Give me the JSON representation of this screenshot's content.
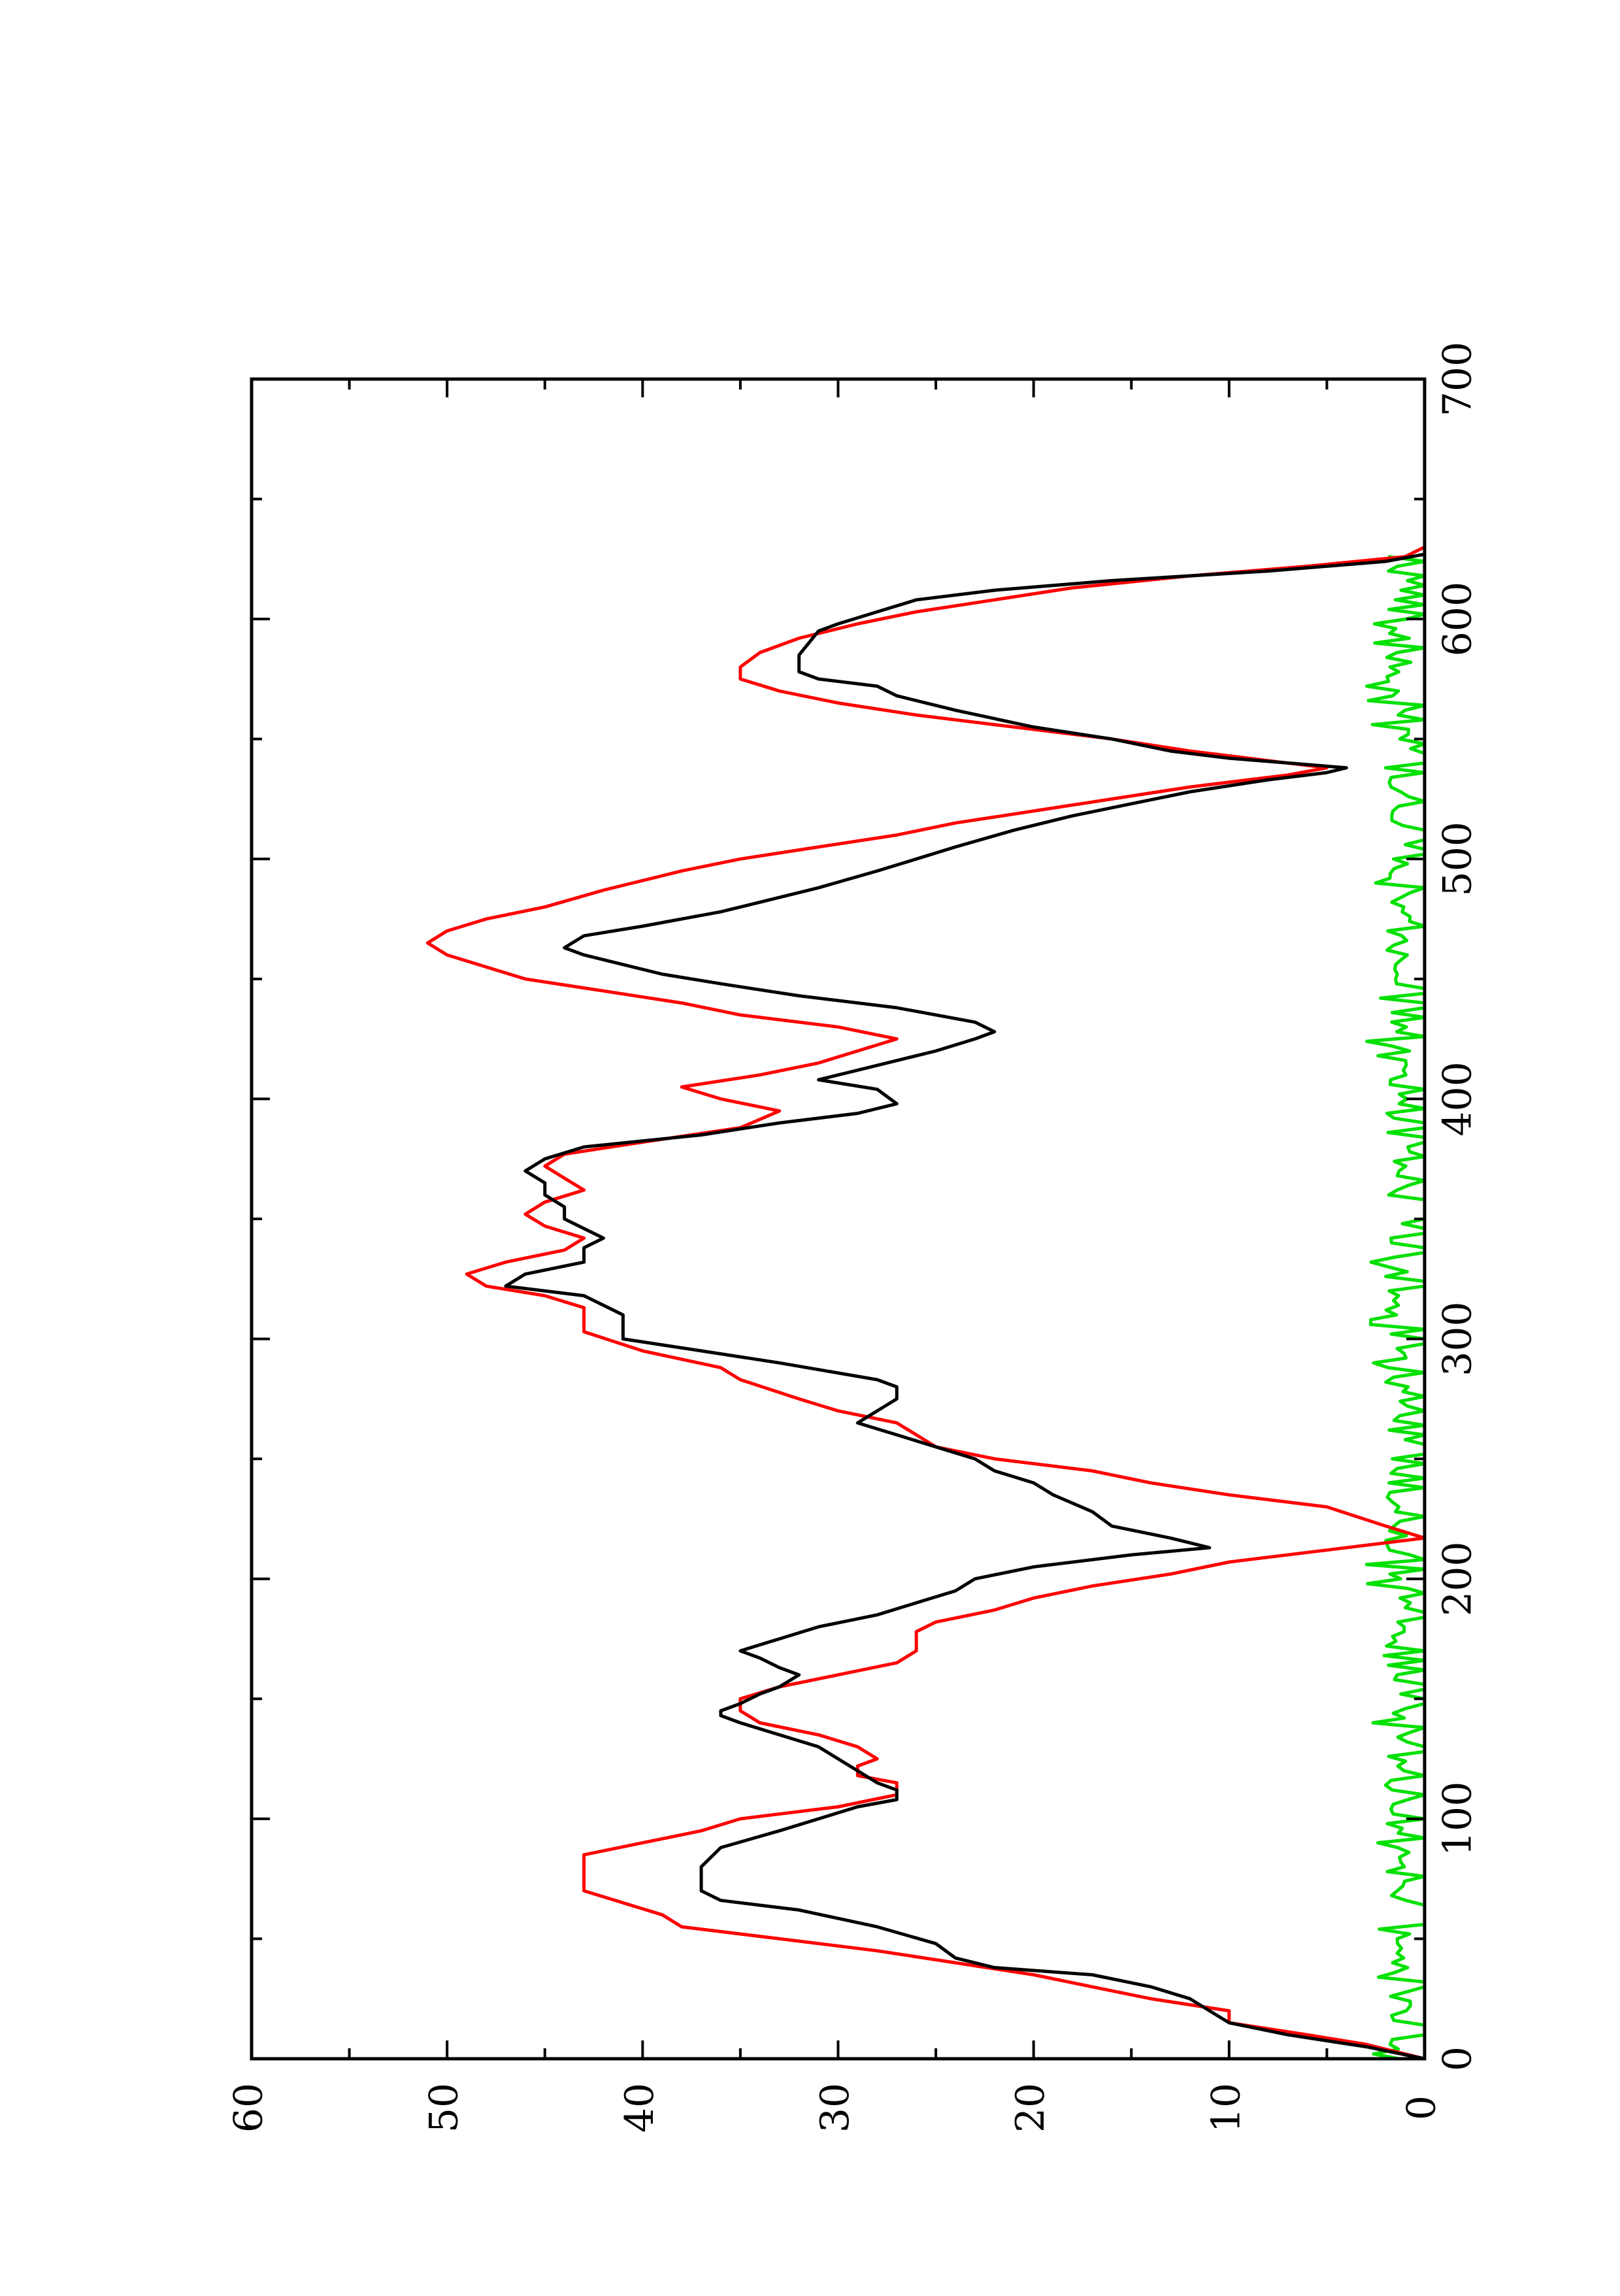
{
  "chart_data": {
    "type": "line",
    "title": "",
    "xlabel": "",
    "ylabel": "",
    "orientation": "rotated-90-ccw",
    "xlim": [
      0,
      700
    ],
    "ylim": [
      0,
      60
    ],
    "x_ticks": [
      0,
      100,
      200,
      300,
      400,
      500,
      600,
      700
    ],
    "y_ticks": [
      0,
      10,
      20,
      30,
      40,
      50,
      60
    ],
    "x_tick_labels": [
      "0",
      "100",
      "200",
      "300",
      "400",
      "500",
      "600",
      "700"
    ],
    "y_tick_labels": [
      "0",
      "10",
      "20",
      "30",
      "40",
      "50",
      "60"
    ],
    "grid": false,
    "legend": "none",
    "series": [
      {
        "color": "#000000",
        "points": [
          [
            0,
            0
          ],
          [
            5,
            3
          ],
          [
            10,
            7
          ],
          [
            15,
            10
          ],
          [
            20,
            11
          ],
          [
            25,
            12
          ],
          [
            30,
            14
          ],
          [
            35,
            17
          ],
          [
            38,
            22
          ],
          [
            42,
            24
          ],
          [
            48,
            25
          ],
          [
            55,
            28
          ],
          [
            62,
            32
          ],
          [
            66,
            36
          ],
          [
            70,
            37
          ],
          [
            80,
            37
          ],
          [
            88,
            36
          ],
          [
            95,
            33
          ],
          [
            100,
            31
          ],
          [
            105,
            29
          ],
          [
            108,
            27
          ],
          [
            112,
            27
          ],
          [
            115,
            28
          ],
          [
            120,
            29
          ],
          [
            125,
            30
          ],
          [
            130,
            31
          ],
          [
            135,
            33
          ],
          [
            140,
            35
          ],
          [
            143,
            36
          ],
          [
            145,
            36
          ],
          [
            148,
            35
          ],
          [
            152,
            34
          ],
          [
            155,
            33
          ],
          [
            160,
            32
          ],
          [
            163,
            33
          ],
          [
            167,
            34
          ],
          [
            170,
            35
          ],
          [
            175,
            33
          ],
          [
            180,
            31
          ],
          [
            185,
            28
          ],
          [
            190,
            26
          ],
          [
            195,
            24
          ],
          [
            200,
            23
          ],
          [
            205,
            20
          ],
          [
            210,
            15
          ],
          [
            213,
            11
          ],
          [
            217,
            13
          ],
          [
            222,
            16
          ],
          [
            228,
            17
          ],
          [
            235,
            19
          ],
          [
            240,
            20
          ],
          [
            245,
            22
          ],
          [
            250,
            23
          ],
          [
            255,
            25
          ],
          [
            260,
            27
          ],
          [
            265,
            29
          ],
          [
            270,
            28
          ],
          [
            275,
            27
          ],
          [
            280,
            27
          ],
          [
            283,
            28
          ],
          [
            290,
            33
          ],
          [
            295,
            37
          ],
          [
            300,
            41
          ],
          [
            310,
            41
          ],
          [
            318,
            43
          ],
          [
            322,
            47
          ],
          [
            327,
            46
          ],
          [
            332,
            43
          ],
          [
            338,
            43
          ],
          [
            342,
            42
          ],
          [
            346,
            43
          ],
          [
            350,
            44
          ],
          [
            355,
            44
          ],
          [
            360,
            45
          ],
          [
            365,
            45
          ],
          [
            370,
            46
          ],
          [
            375,
            45
          ],
          [
            380,
            43
          ],
          [
            385,
            37
          ],
          [
            390,
            33
          ],
          [
            394,
            29
          ],
          [
            398,
            27
          ],
          [
            404,
            28
          ],
          [
            408,
            31
          ],
          [
            412,
            29
          ],
          [
            416,
            27
          ],
          [
            420,
            25
          ],
          [
            425,
            23
          ],
          [
            428,
            22
          ],
          [
            432,
            23
          ],
          [
            438,
            27
          ],
          [
            443,
            32
          ],
          [
            448,
            36
          ],
          [
            452,
            39
          ],
          [
            456,
            41
          ],
          [
            460,
            43
          ],
          [
            463,
            44
          ],
          [
            468,
            43
          ],
          [
            472,
            40
          ],
          [
            478,
            36
          ],
          [
            482,
            34
          ],
          [
            488,
            31
          ],
          [
            495,
            28
          ],
          [
            500,
            26
          ],
          [
            505,
            24
          ],
          [
            512,
            21
          ],
          [
            518,
            18
          ],
          [
            523,
            15
          ],
          [
            528,
            12
          ],
          [
            533,
            8
          ],
          [
            536,
            5
          ],
          [
            538,
            4
          ],
          [
            540,
            7
          ],
          [
            542,
            10
          ],
          [
            545,
            13
          ],
          [
            550,
            16
          ],
          [
            555,
            20
          ],
          [
            562,
            24
          ],
          [
            568,
            27
          ],
          [
            572,
            28
          ],
          [
            575,
            31
          ],
          [
            578,
            32
          ],
          [
            585,
            32
          ],
          [
            595,
            31
          ],
          [
            598,
            30
          ],
          [
            603,
            28
          ],
          [
            608,
            26
          ],
          [
            612,
            22
          ],
          [
            616,
            16
          ],
          [
            620,
            8
          ],
          [
            624,
            2
          ],
          [
            627,
            0
          ]
        ]
      },
      {
        "color": "#ff0000",
        "points": [
          [
            0,
            0
          ],
          [
            6,
            3
          ],
          [
            10,
            6
          ],
          [
            15,
            10
          ],
          [
            20,
            10
          ],
          [
            25,
            14
          ],
          [
            30,
            17
          ],
          [
            35,
            20
          ],
          [
            40,
            24
          ],
          [
            45,
            28
          ],
          [
            50,
            33
          ],
          [
            55,
            38
          ],
          [
            60,
            39
          ],
          [
            65,
            41
          ],
          [
            70,
            43
          ],
          [
            85,
            43
          ],
          [
            90,
            40
          ],
          [
            95,
            37
          ],
          [
            100,
            35
          ],
          [
            105,
            30
          ],
          [
            110,
            27
          ],
          [
            115,
            27
          ],
          [
            118,
            29
          ],
          [
            122,
            29
          ],
          [
            125,
            28
          ],
          [
            130,
            29
          ],
          [
            135,
            31
          ],
          [
            140,
            34
          ],
          [
            145,
            35
          ],
          [
            150,
            35
          ],
          [
            155,
            33
          ],
          [
            160,
            30
          ],
          [
            165,
            27
          ],
          [
            170,
            26
          ],
          [
            175,
            26
          ],
          [
            178,
            26
          ],
          [
            182,
            25
          ],
          [
            187,
            22
          ],
          [
            192,
            20
          ],
          [
            197,
            17
          ],
          [
            202,
            13
          ],
          [
            207,
            10
          ],
          [
            212,
            5
          ],
          [
            217,
            0
          ],
          [
            222,
            2
          ],
          [
            230,
            5
          ],
          [
            235,
            10
          ],
          [
            240,
            14
          ],
          [
            245,
            17
          ],
          [
            250,
            22
          ],
          [
            255,
            25
          ],
          [
            260,
            26
          ],
          [
            265,
            27
          ],
          [
            270,
            30
          ],
          [
            275,
            32
          ],
          [
            283,
            35
          ],
          [
            288,
            36
          ],
          [
            295,
            40
          ],
          [
            303,
            43
          ],
          [
            313,
            43
          ],
          [
            318,
            45
          ],
          [
            322,
            48
          ],
          [
            327,
            49
          ],
          [
            332,
            47
          ],
          [
            337,
            44
          ],
          [
            342,
            43
          ],
          [
            347,
            45
          ],
          [
            352,
            46
          ],
          [
            357,
            45
          ],
          [
            362,
            43
          ],
          [
            367,
            44
          ],
          [
            372,
            45
          ],
          [
            377,
            44
          ],
          [
            382,
            40
          ],
          [
            388,
            35
          ],
          [
            395,
            33
          ],
          [
            400,
            36
          ],
          [
            405,
            38
          ],
          [
            410,
            34
          ],
          [
            415,
            31
          ],
          [
            420,
            29
          ],
          [
            425,
            27
          ],
          [
            430,
            30
          ],
          [
            435,
            35
          ],
          [
            440,
            38
          ],
          [
            445,
            42
          ],
          [
            450,
            46
          ],
          [
            455,
            48
          ],
          [
            460,
            50
          ],
          [
            465,
            51
          ],
          [
            470,
            50
          ],
          [
            475,
            48
          ],
          [
            480,
            45
          ],
          [
            487,
            42
          ],
          [
            495,
            38
          ],
          [
            500,
            35
          ],
          [
            505,
            31
          ],
          [
            510,
            27
          ],
          [
            515,
            24
          ],
          [
            520,
            20
          ],
          [
            525,
            16
          ],
          [
            530,
            12
          ],
          [
            535,
            7
          ],
          [
            538,
            5
          ],
          [
            541,
            8
          ],
          [
            545,
            12
          ],
          [
            550,
            16
          ],
          [
            555,
            21
          ],
          [
            560,
            26
          ],
          [
            565,
            30
          ],
          [
            570,
            33
          ],
          [
            575,
            35
          ],
          [
            580,
            35
          ],
          [
            586,
            34
          ],
          [
            592,
            32
          ],
          [
            598,
            29
          ],
          [
            603,
            26
          ],
          [
            608,
            22
          ],
          [
            613,
            18
          ],
          [
            618,
            12
          ],
          [
            622,
            6
          ],
          [
            626,
            1
          ],
          [
            630,
            0
          ]
        ]
      },
      {
        "color": "#00e000",
        "points": []
      }
    ]
  }
}
